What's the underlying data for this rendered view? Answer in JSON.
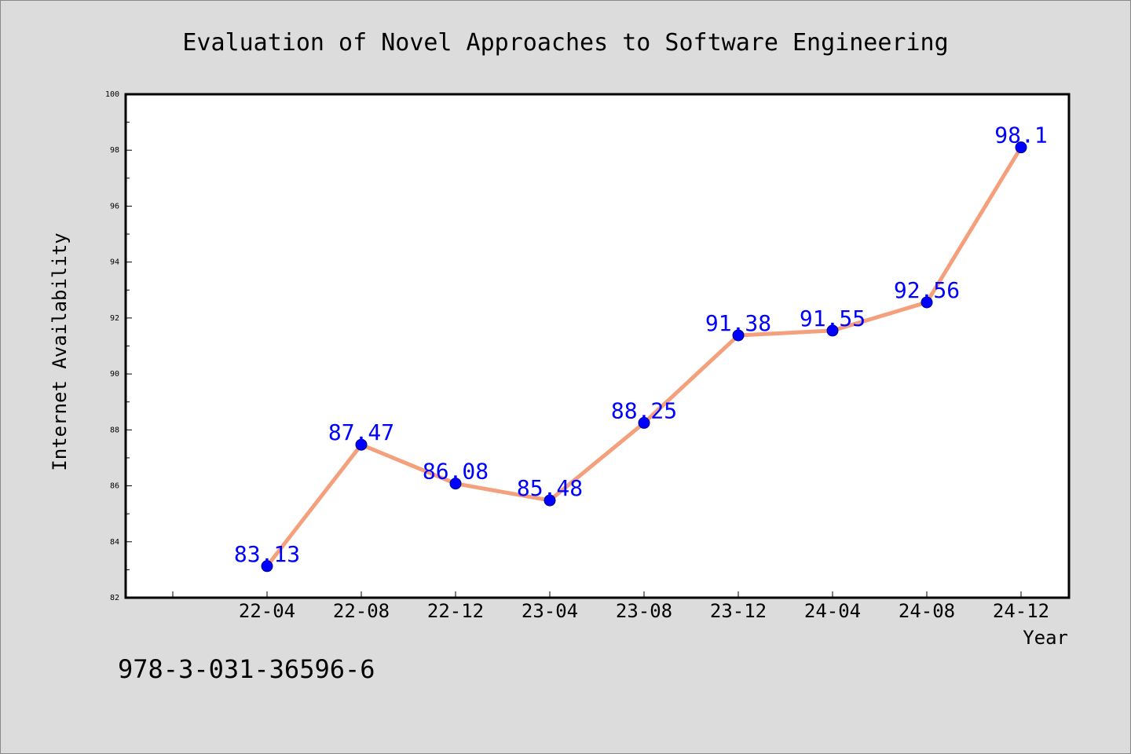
{
  "chart_data": {
    "type": "line",
    "title": "Evaluation of Novel Approaches to Software Engineering",
    "xlabel": "Year",
    "ylabel": "Internet Availability",
    "categories": [
      "22-04",
      "22-08",
      "22-12",
      "23-04",
      "23-08",
      "23-12",
      "24-04",
      "24-08",
      "24-12"
    ],
    "series": [
      {
        "values": [
          83.13,
          87.47,
          86.08,
          85.48,
          88.25,
          91.38,
          91.55,
          92.56,
          98.1
        ]
      }
    ],
    "data_labels": [
      "83.13",
      "87.47",
      "86.08",
      "85.48",
      "88.25",
      "91.38",
      "91.55",
      "92.56",
      "98.1"
    ],
    "ylim": [
      82,
      100
    ],
    "yticks": [
      "82",
      "84",
      "86",
      "88",
      "90",
      "92",
      "94",
      "96",
      "98",
      "100"
    ],
    "grid": false,
    "legend": "none",
    "colors": {
      "line": "#f4a07c",
      "marker": "#0000ff",
      "label": "#0000ff",
      "background": "#dcdcdc",
      "plot_background": "#ffffff"
    }
  },
  "footer": {
    "isbn": "978-3-031-36596-6"
  }
}
